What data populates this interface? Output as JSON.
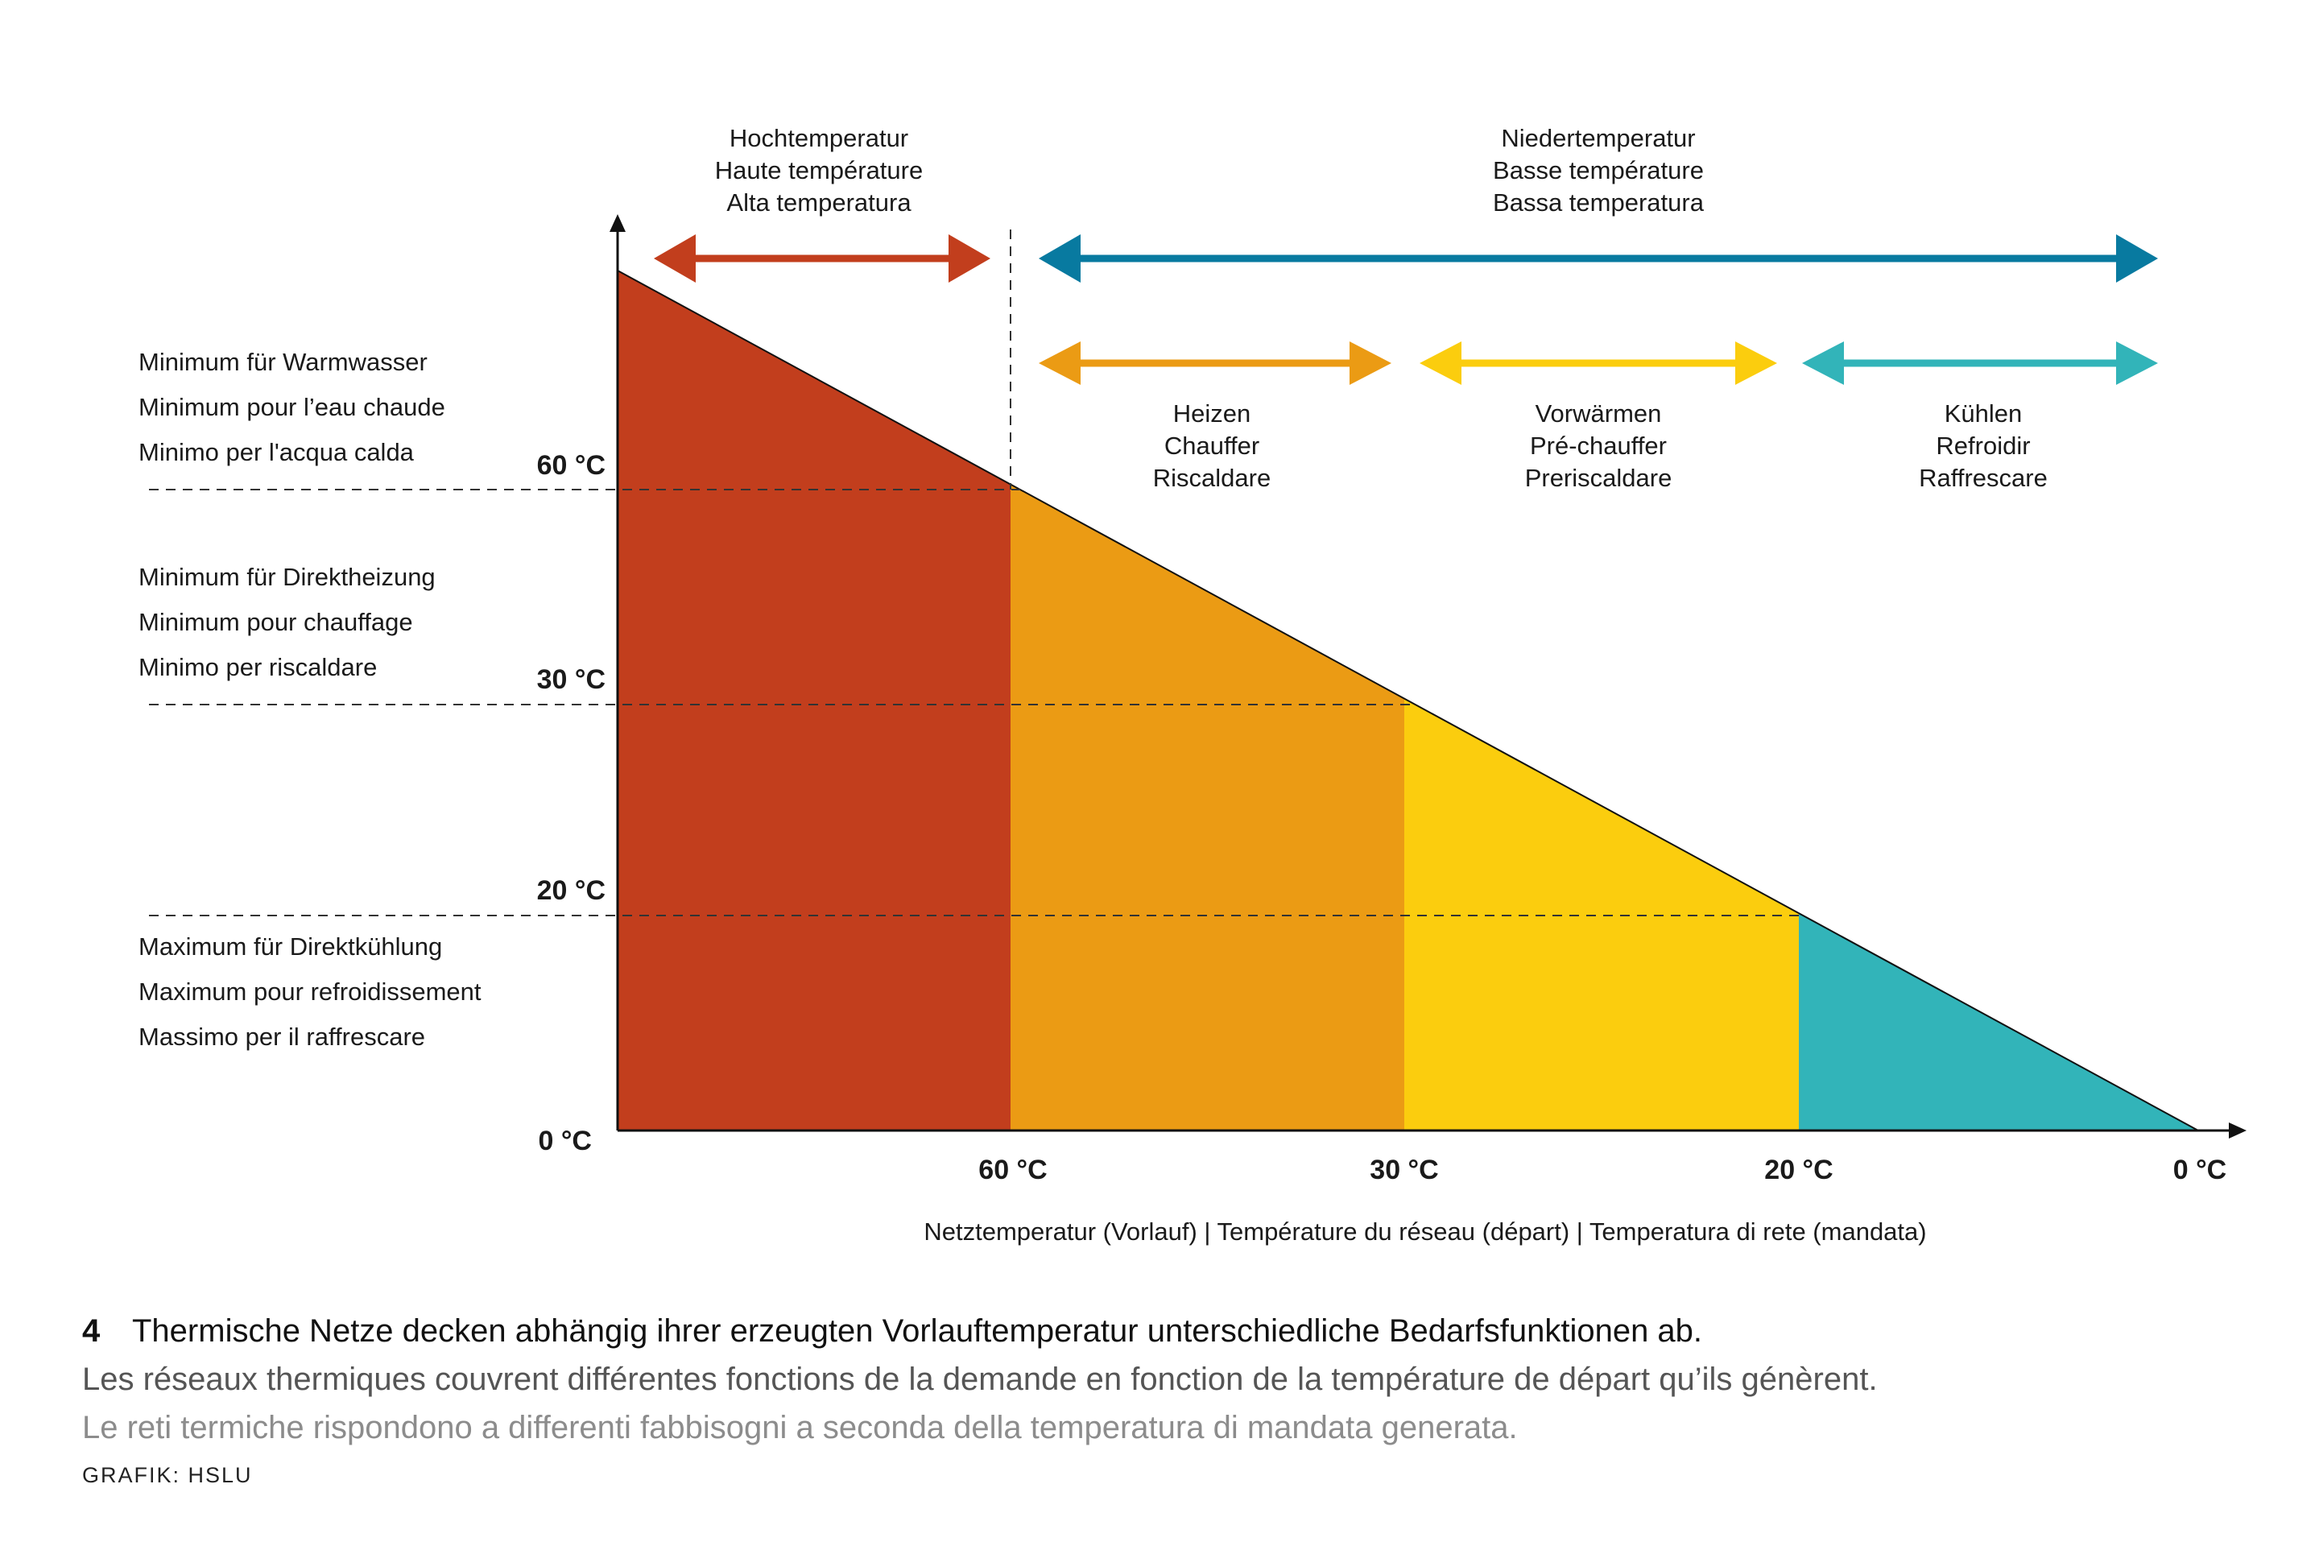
{
  "chart_data": {
    "type": "area",
    "description_axis_x": "Netztemperatur (Vorlauf) | Température du réseau (départ) | Temperatura di rete (mandata)",
    "y_tick_labels": [
      "60 °C",
      "30 °C",
      "20 °C",
      "0 °C"
    ],
    "x_tick_labels": [
      "60 °C",
      "30 °C",
      "20 °C",
      "0 °C"
    ],
    "segments": [
      {
        "name": "Hochtemperatur",
        "x_from": "max",
        "x_to": "60 °C",
        "color": "#c23e1d"
      },
      {
        "name": "Heizen",
        "x_from": "60 °C",
        "x_to": "30 °C",
        "color": "#eb9b14"
      },
      {
        "name": "Vorwärmen",
        "x_from": "30 °C",
        "x_to": "20 °C",
        "color": "#fbcd0e"
      },
      {
        "name": "Kühlen",
        "x_from": "20 °C",
        "x_to": "0 °C",
        "color": "#32b4b9"
      }
    ],
    "ranges": [
      {
        "key": "high",
        "lines": [
          "Hochtemperatur",
          "Haute température",
          "Alta temperatura"
        ],
        "color": "#c23e1d"
      },
      {
        "key": "low",
        "lines": [
          "Niedertemperatur",
          "Basse température",
          "Bassa temperatura"
        ],
        "color": "#087aa0"
      },
      {
        "key": "heat",
        "lines": [
          "Heizen",
          "Chauffer",
          "Riscaldare"
        ],
        "color": "#eb9b14"
      },
      {
        "key": "preheat",
        "lines": [
          "Vorwärmen",
          "Pré-chauffer",
          "Preriscaldare"
        ],
        "color": "#fbcd0e"
      },
      {
        "key": "cool",
        "lines": [
          "Kühlen",
          "Refroidir",
          "Raffrescare"
        ],
        "color": "#32b4b9"
      }
    ],
    "thresholds": [
      {
        "value": "60 °C",
        "lines": [
          "Minimum für Warmwasser",
          "Minimum pour l’eau chaude",
          "Minimo per l'acqua calda"
        ]
      },
      {
        "value": "30 °C",
        "lines": [
          "Minimum für Direktheizung",
          "Minimum pour chauffage",
          "Minimo per riscaldare"
        ]
      },
      {
        "value": "20 °C",
        "lines": [
          "Maximum für Direktkühlung",
          "Maximum pour refroidissement",
          "Massimo per il raffrescare"
        ]
      }
    ]
  },
  "caption": {
    "number": "4",
    "de": "Thermische Netze decken abhängig ihrer erzeugten Vorlauftemperatur unterschiedliche Bedarfsfunktionen ab.",
    "fr": "Les réseaux thermiques couvrent différentes fonctions de la demande en fonction de la température de départ qu’ils génèrent.",
    "it": "Le reti termiche rispondono a differenti fabbisogni a seconda della temperatura di mandata generata."
  },
  "credit": "GRAFIK: HSLU"
}
